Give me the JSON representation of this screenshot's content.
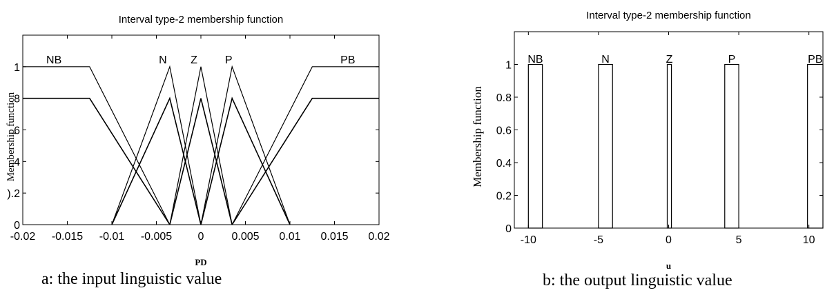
{
  "chart_data": [
    {
      "type": "line",
      "title": "Interval type-2 membership function",
      "xlabel": "PD",
      "ylabel": "Membership function",
      "xlim": [
        -0.02,
        0.02
      ],
      "ylim": [
        0,
        1.2
      ],
      "xticks": [
        -0.02,
        -0.015,
        -0.01,
        -0.005,
        0,
        0.005,
        0.01,
        0.015,
        0.02
      ],
      "xtick_labels": [
        "-0.02",
        "-0.015",
        "-0.01",
        "-0.005",
        "0",
        "0.005",
        "0.01",
        "0.015",
        "0.02"
      ],
      "yticks": [
        0,
        0.2,
        0.4,
        0.6,
        0.8,
        1
      ],
      "ytick_labels": [
        "0",
        ").2",
        ".4",
        ".6",
        ".8",
        "1"
      ],
      "grid": false,
      "series": [
        {
          "name": "NB",
          "upper": {
            "x": [
              -0.02,
              -0.0125,
              -0.0035
            ],
            "y": [
              1,
              1,
              0
            ]
          },
          "lower": {
            "x": [
              -0.02,
              -0.0125,
              -0.0035
            ],
            "y": [
              0.8,
              0.8,
              0
            ]
          }
        },
        {
          "name": "N",
          "upper": {
            "x": [
              -0.01,
              -0.0035,
              0
            ],
            "y": [
              0,
              1,
              0
            ]
          },
          "lower": {
            "x": [
              -0.01,
              -0.0035,
              0
            ],
            "y": [
              0,
              0.8,
              0
            ]
          }
        },
        {
          "name": "Z",
          "upper": {
            "x": [
              -0.0035,
              0,
              0.0035
            ],
            "y": [
              0,
              1,
              0
            ]
          },
          "lower": {
            "x": [
              -0.0035,
              0,
              0.0035
            ],
            "y": [
              0,
              0.8,
              0
            ]
          }
        },
        {
          "name": "P",
          "upper": {
            "x": [
              0,
              0.0035,
              0.01
            ],
            "y": [
              0,
              1,
              0
            ]
          },
          "lower": {
            "x": [
              0,
              0.0035,
              0.01
            ],
            "y": [
              0,
              0.8,
              0
            ]
          }
        },
        {
          "name": "PB",
          "upper": {
            "x": [
              0.0035,
              0.0125,
              0.02
            ],
            "y": [
              0,
              1,
              1
            ]
          },
          "lower": {
            "x": [
              0.0035,
              0.0125,
              0.02
            ],
            "y": [
              0,
              0.8,
              0.8
            ]
          }
        }
      ]
    },
    {
      "type": "bar",
      "title": "Interval type-2 membership function",
      "xlabel": "u",
      "ylabel": "Membership function",
      "xlim": [
        -11,
        11
      ],
      "ylim": [
        0,
        1.2
      ],
      "xticks": [
        -10,
        -5,
        0,
        5,
        10
      ],
      "xtick_labels": [
        "-10",
        "-5",
        "0",
        "5",
        "10"
      ],
      "yticks": [
        0,
        0.2,
        0.4,
        0.6,
        0.8,
        1
      ],
      "ytick_labels": [
        "0",
        "0.2",
        "0.4",
        "0.6",
        "0.8",
        "1"
      ],
      "grid": false,
      "series": [
        {
          "name": "NB",
          "x_range": [
            -10,
            -9
          ],
          "value": 1
        },
        {
          "name": "N",
          "x_range": [
            -5,
            -4
          ],
          "value": 1
        },
        {
          "name": "Z",
          "x_range": [
            -0.1,
            0.2
          ],
          "value": 1
        },
        {
          "name": "P",
          "x_range": [
            4,
            5
          ],
          "value": 1
        },
        {
          "name": "PB",
          "x_range": [
            9.9,
            11
          ],
          "value": 1
        }
      ]
    }
  ],
  "captions": {
    "a": "a: the input linguistic value",
    "b": "b: the output linguistic value"
  },
  "colors": {
    "line": "#000000",
    "background": "#ffffff"
  }
}
